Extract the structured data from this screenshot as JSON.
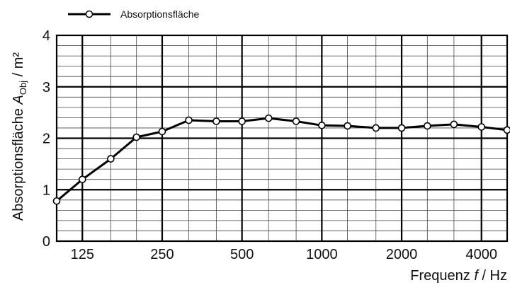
{
  "chart_data": {
    "type": "line",
    "title": "",
    "xlabel_prefix": "Frequenz ",
    "xlabel_var": "f",
    "xlabel_unit": " / Hz",
    "ylabel_prefix": "Absorptionsfläche ",
    "ylabel_var": "A",
    "ylabel_sub": "Obj",
    "ylabel_unit": " / m²",
    "x_tick_labels": [
      "125",
      "250",
      "500",
      "1000",
      "2000",
      "4000"
    ],
    "y_tick_labels": [
      "0",
      "1",
      "2",
      "3",
      "4"
    ],
    "ylim": [
      0,
      4
    ],
    "grid": true,
    "legend_position": "top-left",
    "x_scale": "log (third-octave bands)",
    "series": [
      {
        "name": "Absorptionsfläche",
        "color": "#000000",
        "marker": "open-circle",
        "x": [
          100,
          125,
          160,
          200,
          250,
          315,
          400,
          500,
          630,
          800,
          1000,
          1250,
          1600,
          2000,
          2500,
          3150,
          4000,
          5000
        ],
        "values": [
          0.78,
          1.2,
          1.6,
          2.02,
          2.13,
          2.35,
          2.33,
          2.33,
          2.39,
          2.33,
          2.25,
          2.24,
          2.2,
          2.2,
          2.24,
          2.27,
          2.22,
          2.16
        ]
      }
    ]
  }
}
